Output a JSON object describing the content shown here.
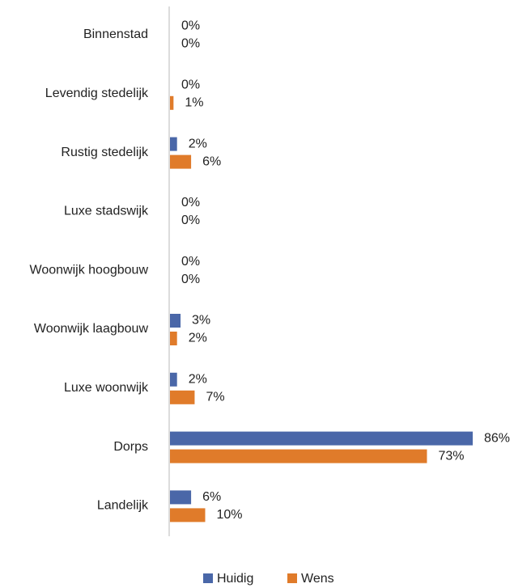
{
  "chart_data": {
    "type": "bar",
    "orientation": "horizontal",
    "categories": [
      "Binnenstad",
      "Levendig stedelijk",
      "Rustig stedelijk",
      "Luxe stadswijk",
      "Woonwijk hoogbouw",
      "Woonwijk laagbouw",
      "Luxe woonwijk",
      "Dorps",
      "Landelijk"
    ],
    "series": [
      {
        "name": "Huidig",
        "color": "#4a67a8",
        "values": [
          0,
          0,
          2,
          0,
          0,
          3,
          2,
          86,
          6
        ],
        "value_labels": [
          "0%",
          "0%",
          "2%",
          "0%",
          "0%",
          "3%",
          "2%",
          "86%",
          "6%"
        ]
      },
      {
        "name": "Wens",
        "color": "#e07b2a",
        "values": [
          0,
          1,
          6,
          0,
          0,
          2,
          7,
          73,
          10
        ],
        "value_labels": [
          "0%",
          "1%",
          "6%",
          "0%",
          "0%",
          "2%",
          "7%",
          "73%",
          "10%"
        ]
      }
    ],
    "legend": "bottom"
  }
}
